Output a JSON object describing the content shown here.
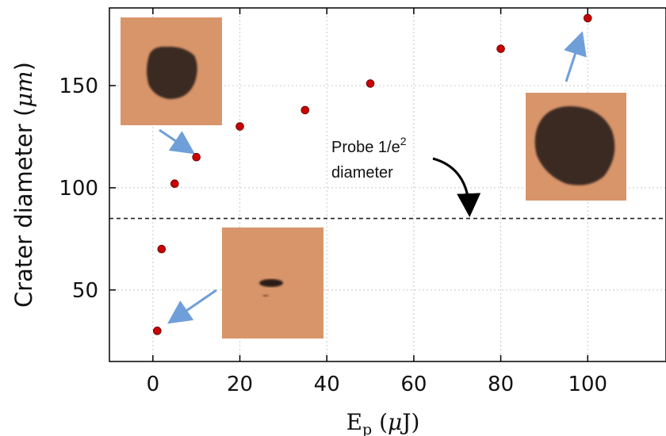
{
  "chart_data": {
    "type": "scatter",
    "xlabel": "E_p (μJ)",
    "ylabel": "Crater diameter (μm)",
    "xlim": [
      -10,
      118
    ],
    "ylim": [
      15,
      188
    ],
    "xticks": [
      0,
      20,
      40,
      60,
      80,
      100
    ],
    "yticks": [
      50,
      100,
      150
    ],
    "grid": true,
    "series": [
      {
        "x": [
          1,
          2,
          5,
          10,
          20,
          35,
          50,
          80,
          100
        ],
        "y": [
          30,
          70,
          102,
          115,
          130,
          138,
          151,
          168,
          183
        ]
      }
    ],
    "reference_line": {
      "y": 85,
      "style": "dashed"
    },
    "annotations": [
      {
        "text_line1": "Probe 1/e",
        "superscript": "2",
        "text_line2": "diameter"
      }
    ],
    "colors": {
      "marker": "#cc0000",
      "marker_edge": "#6b0000",
      "arrow": "#6f9fd8",
      "grid": "#c8c8c8",
      "inset_bg": "#d9956a",
      "crater": "#3b2a22"
    }
  }
}
